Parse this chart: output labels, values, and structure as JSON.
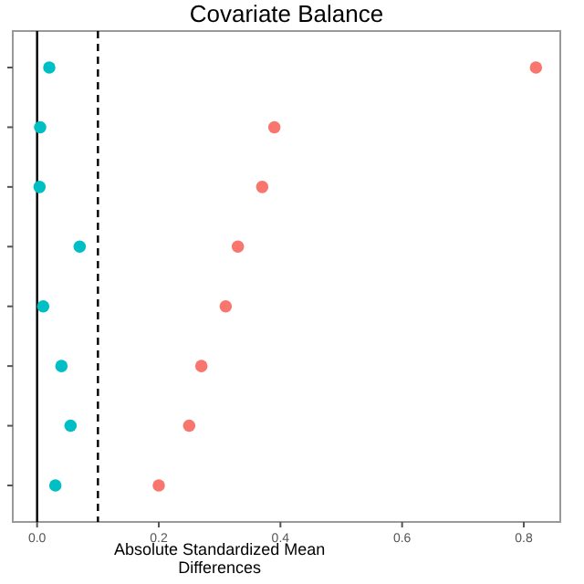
{
  "chart_data": {
    "type": "scatter",
    "title": "Covariate Balance",
    "xlabel": "Absolute Standardized Mean Differences",
    "orientation": "horizontal",
    "categories": [
      null,
      null,
      null,
      null,
      null,
      null,
      null,
      null
    ],
    "series": [
      {
        "color": "#f8766d",
        "values": [
          0.82,
          0.39,
          0.37,
          0.33,
          0.31,
          0.27,
          0.25,
          0.2
        ]
      },
      {
        "color": "#00bfc4",
        "values": [
          0.02,
          0.005,
          0.004,
          0.07,
          0.01,
          0.04,
          0.055,
          0.03
        ]
      }
    ],
    "xlim": [
      -0.04,
      0.86
    ],
    "xticks": [
      {
        "value": 0,
        "label": "0.0"
      },
      0.2,
      0.4,
      0.6,
      0.8
    ],
    "grid": false,
    "marker": "circle",
    "ref_lines": [
      {
        "axis": "x",
        "value": 0,
        "color": "#000000",
        "line_style": "solid"
      },
      {
        "axis": "x",
        "value": 0.1,
        "color": "#000000",
        "line_style": "dashed"
      }
    ]
  }
}
